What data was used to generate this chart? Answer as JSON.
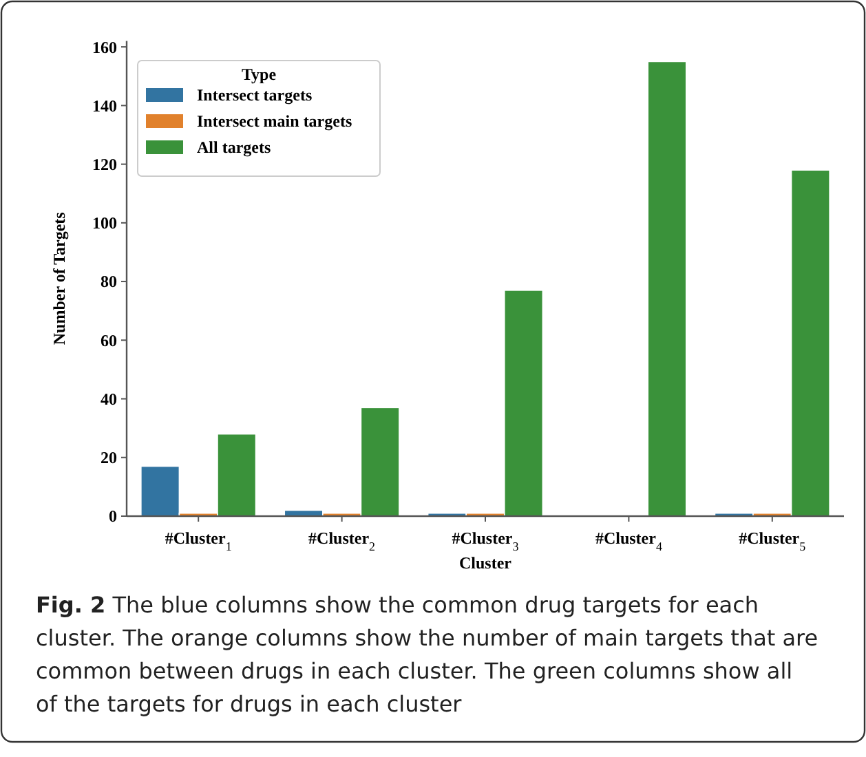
{
  "chart_data": {
    "type": "bar",
    "xlabel": "Cluster",
    "ylabel": "Number of Targets",
    "legend_title": "Type",
    "categories": [
      "#Cluster$_{1}$",
      "#Cluster$_{2}$",
      "#Cluster$_{3}$",
      "#Cluster$_{4}$",
      "#Cluster$_{5}$"
    ],
    "series": [
      {
        "name": "Intersect targets",
        "color": "#3274a1",
        "values": [
          17,
          2,
          1,
          0,
          1
        ]
      },
      {
        "name": "Intersect main targets",
        "color": "#e1812c",
        "values": [
          1,
          1,
          1,
          0,
          1
        ]
      },
      {
        "name": "All targets",
        "color": "#3a923a",
        "values": [
          28,
          37,
          77,
          155,
          118
        ]
      }
    ],
    "ylim": [
      0,
      162
    ],
    "yticks": [
      0,
      20,
      40,
      60,
      80,
      100,
      120,
      140,
      160
    ],
    "grid": false,
    "legend": "top left",
    "annotations": [
      "Fig. 2  The blue columns show the common drug targets for each cluster. The orange columns show the number of main targets that are common between drugs in each cluster. The green columns show all of the targets for drugs in each cluster"
    ]
  }
}
